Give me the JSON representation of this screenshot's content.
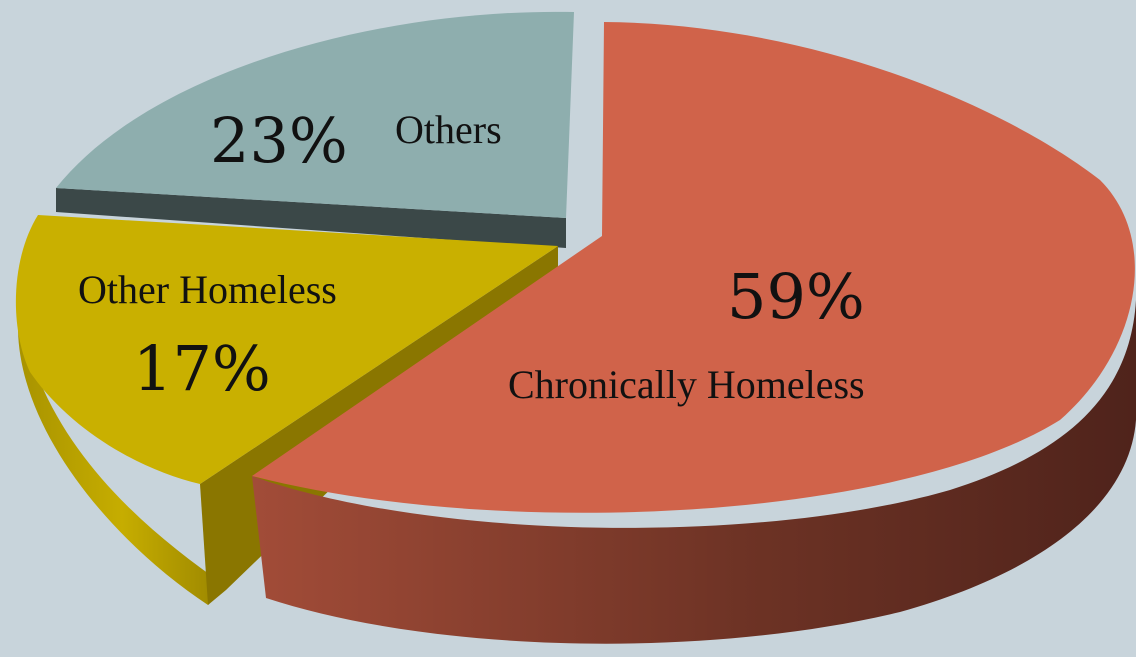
{
  "chart_data": {
    "type": "pie",
    "style": "3d-exploded",
    "legend": "none",
    "slices": [
      {
        "label": "Chronically Homeless",
        "value": 59,
        "value_label": "59%",
        "color": "#d0634a",
        "side_color": "#8a3a2c"
      },
      {
        "label": "Other Homeless",
        "value": 17,
        "value_label": "17%",
        "color": "#c9b000",
        "side_color": "#8a7700"
      },
      {
        "label": "Others",
        "value": 23,
        "value_label": "23%",
        "color": "#8eaeae",
        "side_color": "#3e4a4a"
      }
    ]
  },
  "colors": {
    "background": "#c8d4db"
  }
}
